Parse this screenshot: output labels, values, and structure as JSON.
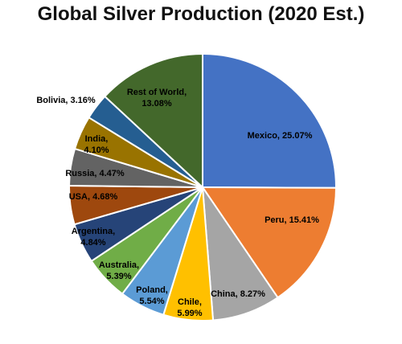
{
  "chart_data": {
    "type": "pie",
    "title": "Global Silver Production (2020 Est.)",
    "slices": [
      {
        "label": "Mexico",
        "value": 25.07,
        "display": "25.07%",
        "color": "#4472C4"
      },
      {
        "label": "Peru",
        "value": 15.41,
        "display": "15.41%",
        "color": "#ED7D31"
      },
      {
        "label": "China",
        "value": 8.27,
        "display": "8.27%",
        "color": "#A5A5A5"
      },
      {
        "label": "Chile",
        "value": 5.99,
        "display": "5.99%",
        "color": "#FFC000"
      },
      {
        "label": "Poland",
        "value": 5.54,
        "display": "5.54%",
        "color": "#5B9BD5"
      },
      {
        "label": "Australia",
        "value": 5.39,
        "display": "5.39%",
        "color": "#70AD47"
      },
      {
        "label": "Argentina",
        "value": 4.84,
        "display": "4.84%",
        "color": "#264478"
      },
      {
        "label": "USA",
        "value": 4.68,
        "display": "4.68%",
        "color": "#9E480E"
      },
      {
        "label": "Russia",
        "value": 4.47,
        "display": "4.47%",
        "color": "#636363"
      },
      {
        "label": "India",
        "value": 4.1,
        "display": "4.10%",
        "color": "#997300"
      },
      {
        "label": "Bolivia",
        "value": 3.16,
        "display": "3.16%",
        "color": "#255E91"
      },
      {
        "label": "Rest of World",
        "value": 13.08,
        "display": "13.08%",
        "color": "#43682B"
      }
    ]
  }
}
